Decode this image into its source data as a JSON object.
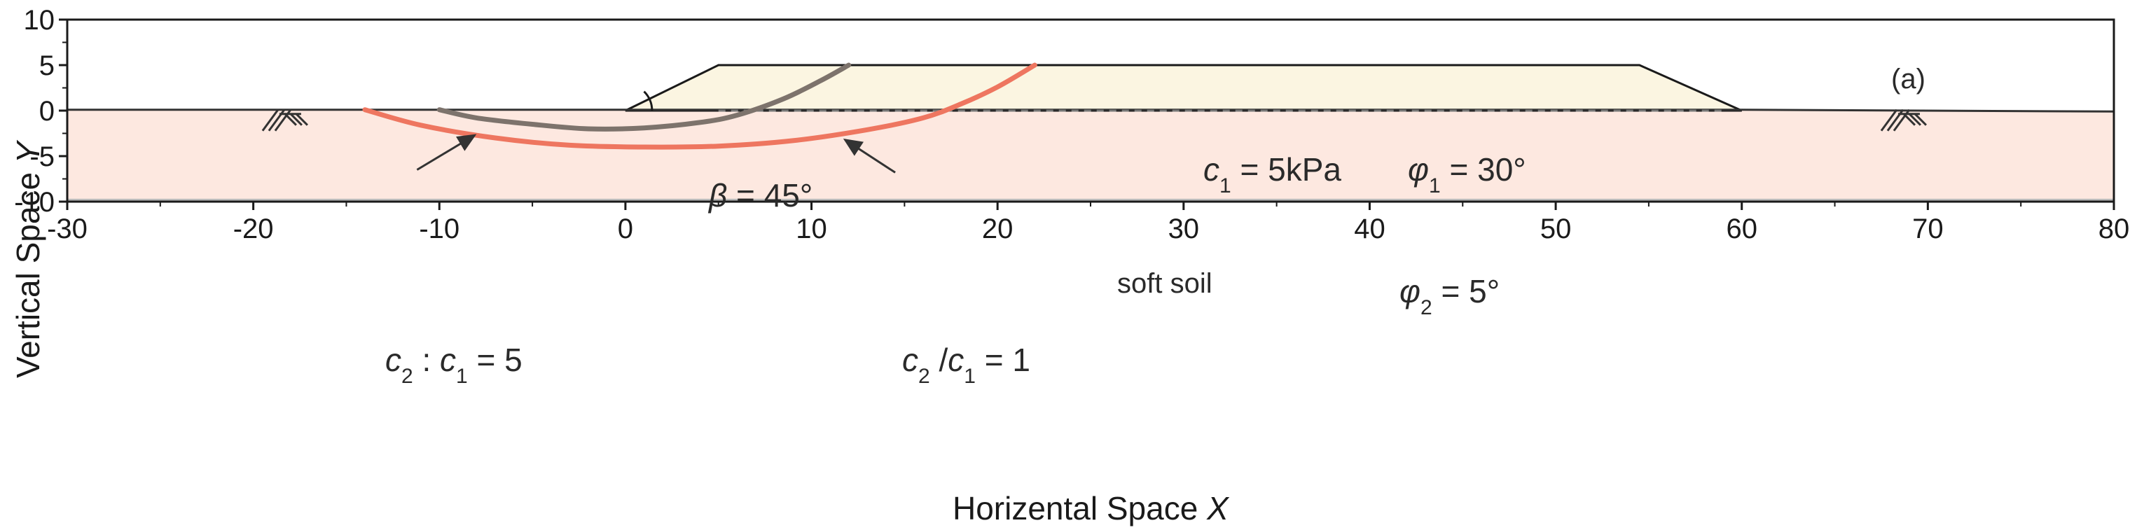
{
  "chart_data": {
    "type": "diagram",
    "panel_label": "(a)",
    "xlabel_text": "Horizental Space ",
    "xlabel_var": "X",
    "ylabel_text": "Vertical Space ",
    "ylabel_var": "Y",
    "xlim": [
      -30,
      80
    ],
    "ylim": [
      -10,
      10
    ],
    "x_ticks": [
      -30,
      -20,
      -10,
      0,
      10,
      20,
      30,
      40,
      50,
      60,
      70,
      80
    ],
    "y_ticks": [
      -10,
      -5,
      0,
      5,
      10
    ],
    "embankment": {
      "polygon": [
        [
          0,
          0
        ],
        [
          5,
          5
        ],
        [
          54.5,
          5
        ],
        [
          60,
          0
        ]
      ],
      "fill_color": "#fbf5e1",
      "edge_color": "#1a1a1a"
    },
    "soft_soil": {
      "y_top": 0,
      "y_bottom": -10,
      "fill_color": "#fde8e0",
      "label": "soft soil",
      "friction_label": {
        "symbol": "φ",
        "sub": "2",
        "value": " = 5°"
      }
    },
    "ground_line": [
      [
        -30,
        0.1
      ],
      [
        0,
        0.1
      ],
      [
        60,
        0.1
      ],
      [
        80,
        -0.1
      ]
    ],
    "slope_angle": {
      "symbol": "β",
      "value": " = 45°"
    },
    "embankment_params": {
      "cohesion": {
        "symbol": "c",
        "sub": "1",
        "value": " = 5kPa"
      },
      "friction": {
        "symbol": "φ",
        "sub": "1",
        "value": " = 30°"
      }
    },
    "series": [
      {
        "label": {
          "a": "c",
          "a_sub": "2",
          "sep": " : ",
          "b": "c",
          "b_sub": "1",
          "value": " = 5"
        },
        "color": "#7d736c",
        "points": [
          [
            -10,
            0.1
          ],
          [
            -8,
            -0.8
          ],
          [
            -5,
            -1.5
          ],
          [
            -2,
            -2.0
          ],
          [
            1,
            -1.9
          ],
          [
            4,
            -1.3
          ],
          [
            6,
            -0.5
          ],
          [
            8.5,
            1.3
          ],
          [
            10.5,
            3.3
          ],
          [
            12,
            5
          ]
        ]
      },
      {
        "label": {
          "a": "c",
          "a_sub": "2",
          "sep": " /",
          "b": "c",
          "b_sub": "1",
          "value": " = 1"
        },
        "color": "#ee7660",
        "points": [
          [
            -14,
            0.1
          ],
          [
            -11,
            -1.6
          ],
          [
            -7,
            -3.0
          ],
          [
            -3,
            -3.8
          ],
          [
            1,
            -4.0
          ],
          [
            5,
            -3.9
          ],
          [
            9,
            -3.3
          ],
          [
            13,
            -2.1
          ],
          [
            16,
            -0.8
          ],
          [
            18,
            0.7
          ],
          [
            20,
            2.6
          ],
          [
            22,
            5
          ]
        ]
      }
    ]
  }
}
